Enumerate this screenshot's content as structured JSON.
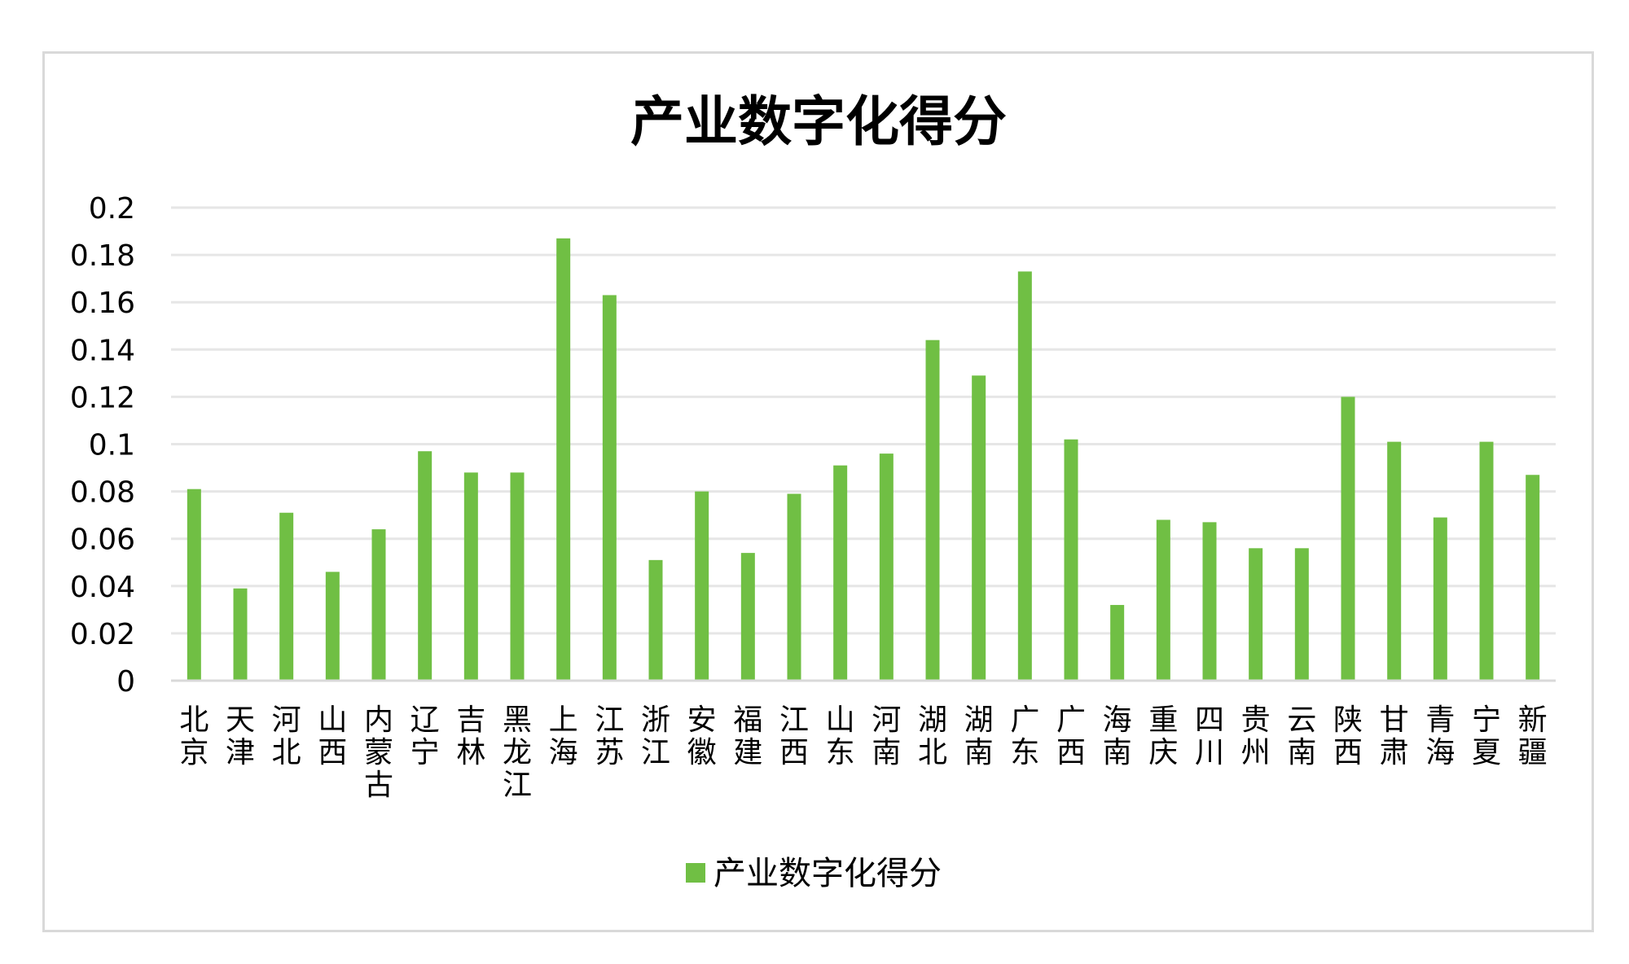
{
  "chart_data": {
    "type": "bar",
    "title": "产业数字化得分",
    "xlabel": "",
    "ylabel": "",
    "ylim": [
      0,
      0.2
    ],
    "yticks": [
      "0",
      "0.02",
      "0.04",
      "0.06",
      "0.08",
      "0.1",
      "0.12",
      "0.14",
      "0.16",
      "0.18",
      "0.2"
    ],
    "grid": true,
    "legend_position": "bottom",
    "bar_color": "#70bf44",
    "categories": [
      "北京",
      "天津",
      "河北",
      "山西",
      "内蒙古",
      "辽宁",
      "吉林",
      "黑龙江",
      "上海",
      "江苏",
      "浙江",
      "安徽",
      "福建",
      "江西",
      "山东",
      "河南",
      "湖北",
      "湖南",
      "广东",
      "广西",
      "海南",
      "重庆",
      "四川",
      "贵州",
      "云南",
      "陕西",
      "甘肃",
      "青海",
      "宁夏",
      "新疆"
    ],
    "series": [
      {
        "name": "产业数字化得分",
        "values": [
          0.081,
          0.039,
          0.071,
          0.046,
          0.064,
          0.097,
          0.088,
          0.088,
          0.187,
          0.163,
          0.051,
          0.08,
          0.054,
          0.079,
          0.091,
          0.096,
          0.144,
          0.129,
          0.173,
          0.102,
          0.032,
          0.068,
          0.067,
          0.056,
          0.056,
          0.12,
          0.101,
          0.069,
          0.101,
          0.087
        ]
      }
    ]
  }
}
